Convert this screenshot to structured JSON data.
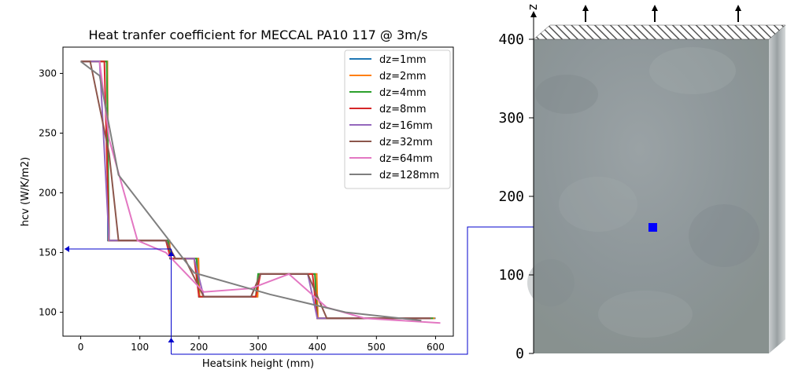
{
  "chart_data": [
    {
      "type": "line",
      "title": "Heat tranfer coefficient for MECCAL PA10 117 @ 3m/s",
      "xlabel": "Heatsink height (mm)",
      "ylabel": "hcv (W/K/m2)",
      "xlim": [
        -30,
        630
      ],
      "ylim": [
        80,
        322
      ],
      "xticks": [
        0,
        100,
        200,
        300,
        400,
        500,
        600
      ],
      "yticks": [
        100,
        150,
        200,
        250,
        300
      ],
      "grid": false,
      "legend_position": "top-right",
      "series": [
        {
          "name": "dz=1mm",
          "color": "#1f77b4",
          "points": [
            [
              0,
              310
            ],
            [
              45,
              310
            ],
            [
              46,
              160
            ],
            [
              150,
              160
            ],
            [
              151,
              145
            ],
            [
              199,
              145
            ],
            [
              200,
              113
            ],
            [
              299,
              113
            ],
            [
              300,
              132
            ],
            [
              399,
              132
            ],
            [
              400,
              95
            ],
            [
              600,
              95
            ]
          ]
        },
        {
          "name": "dz=2mm",
          "color": "#ff7f0e",
          "points": [
            [
              0,
              310
            ],
            [
              45,
              310
            ],
            [
              47,
              160
            ],
            [
              150,
              160
            ],
            [
              152,
              145
            ],
            [
              199,
              145
            ],
            [
              201,
              113
            ],
            [
              299,
              113
            ],
            [
              301,
              132
            ],
            [
              399,
              132
            ],
            [
              401,
              95
            ],
            [
              599,
              95
            ]
          ]
        },
        {
          "name": "dz=4mm",
          "color": "#2ca02c",
          "points": [
            [
              0,
              310
            ],
            [
              44,
              310
            ],
            [
              48,
              160
            ],
            [
              148,
              160
            ],
            [
              152,
              145
            ],
            [
              196,
              145
            ],
            [
              200,
              113
            ],
            [
              296,
              113
            ],
            [
              300,
              132
            ],
            [
              396,
              132
            ],
            [
              400,
              95
            ],
            [
              596,
              95
            ]
          ]
        },
        {
          "name": "dz=8mm",
          "color": "#d62728",
          "points": [
            [
              0,
              310
            ],
            [
              40,
              310
            ],
            [
              48,
              160
            ],
            [
              144,
              160
            ],
            [
              152,
              145
            ],
            [
              192,
              145
            ],
            [
              200,
              113
            ],
            [
              296,
              113
            ],
            [
              304,
              132
            ],
            [
              392,
              132
            ],
            [
              400,
              95
            ],
            [
              592,
              95
            ]
          ]
        },
        {
          "name": "dz=16mm",
          "color": "#9467bd",
          "points": [
            [
              0,
              310
            ],
            [
              32,
              310
            ],
            [
              48,
              160
            ],
            [
              144,
              160
            ],
            [
              160,
              145
            ],
            [
              192,
              145
            ],
            [
              208,
              113
            ],
            [
              288,
              113
            ],
            [
              304,
              132
            ],
            [
              384,
              132
            ],
            [
              400,
              95
            ],
            [
              592,
              95
            ]
          ]
        },
        {
          "name": "dz=32mm",
          "color": "#8c564b",
          "points": [
            [
              0,
              310
            ],
            [
              16,
              310
            ],
            [
              48,
              233
            ],
            [
              64,
              160
            ],
            [
              144,
              160
            ],
            [
              160,
              145
            ],
            [
              176,
              145
            ],
            [
              208,
              113
            ],
            [
              288,
              113
            ],
            [
              304,
              132
            ],
            [
              384,
              132
            ],
            [
              416,
              95
            ],
            [
              592,
              95
            ]
          ]
        },
        {
          "name": "dz=64mm",
          "color": "#e377c2",
          "points": [
            [
              32,
              310
            ],
            [
              48,
              245
            ],
            [
              96,
              160
            ],
            [
              144,
              150
            ],
            [
              208,
              117
            ],
            [
              288,
              120
            ],
            [
              352,
              132
            ],
            [
              416,
              104
            ],
            [
              480,
              95
            ],
            [
              608,
              91
            ]
          ]
        },
        {
          "name": "dz=128mm",
          "color": "#7f7f7f",
          "points": [
            [
              0,
              310
            ],
            [
              32,
              298
            ],
            [
              64,
              215
            ],
            [
              192,
              133
            ],
            [
              320,
              115
            ],
            [
              448,
              100
            ],
            [
              576,
              93
            ]
          ]
        }
      ],
      "annotation_y": 153,
      "annotation_x": 153
    },
    {
      "type": "other",
      "title": "",
      "axis_label": "z",
      "ticks": [
        0,
        100,
        200,
        300,
        400
      ],
      "marker_z": 160,
      "arrow_count": 3
    }
  ],
  "colors": {
    "annotation": "#0000cc",
    "block_face": "#8f989b",
    "block_side": "#b7bdbf"
  }
}
